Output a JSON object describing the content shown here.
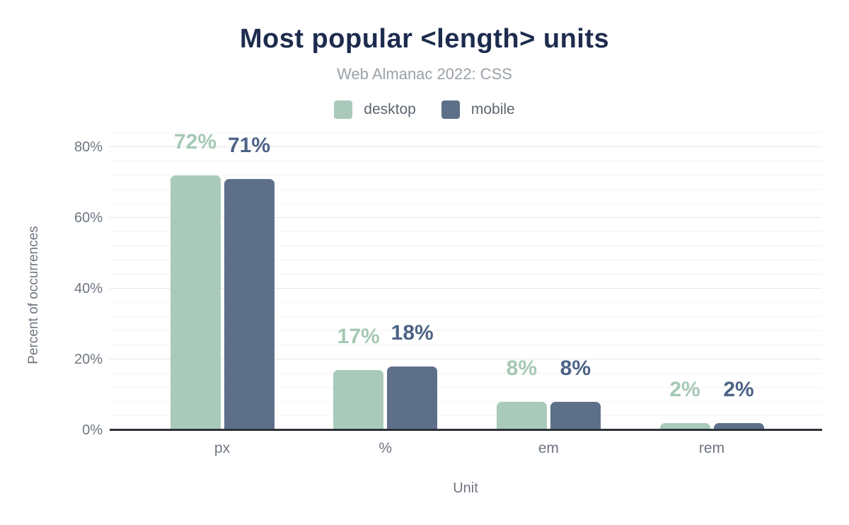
{
  "header": {
    "title": "Most popular <length> units",
    "subtitle": "Web Almanac 2022: CSS"
  },
  "colors": {
    "title": "#1d2c4e",
    "subtitle": "#9ba1a8",
    "axis_text": "#6e7680",
    "baseline": "#2d3138",
    "grid_major": "#e7e7e7",
    "grid_minor": "#f4f4f5"
  },
  "chart_data": {
    "type": "bar",
    "title": "Most popular <length> units",
    "subtitle": "Web Almanac 2022: CSS",
    "categories": [
      "px",
      "%",
      "em",
      "rem"
    ],
    "series": [
      {
        "name": "desktop",
        "values": [
          72,
          17,
          8,
          2
        ],
        "labels": [
          "72%",
          "17%",
          "8%",
          "2%"
        ],
        "color": "#a9caba",
        "label_color": "#a5c8b4"
      },
      {
        "name": "mobile",
        "values": [
          71,
          18,
          8,
          2
        ],
        "labels": [
          "71%",
          "18%",
          "8%",
          "2%"
        ],
        "color": "#5e7089",
        "label_color": "#4d6386"
      }
    ],
    "xlabel": "Unit",
    "ylabel": "Percent of occurrences",
    "yticks": [
      {
        "value": 0,
        "label": "0%"
      },
      {
        "value": 20,
        "label": "20%"
      },
      {
        "value": 40,
        "label": "40%"
      },
      {
        "value": 60,
        "label": "60%"
      },
      {
        "value": 80,
        "label": "80%"
      }
    ],
    "ylim": [
      0,
      86
    ],
    "grid": {
      "major_step": 20,
      "minor_step": 4
    },
    "legend_position": "top"
  }
}
